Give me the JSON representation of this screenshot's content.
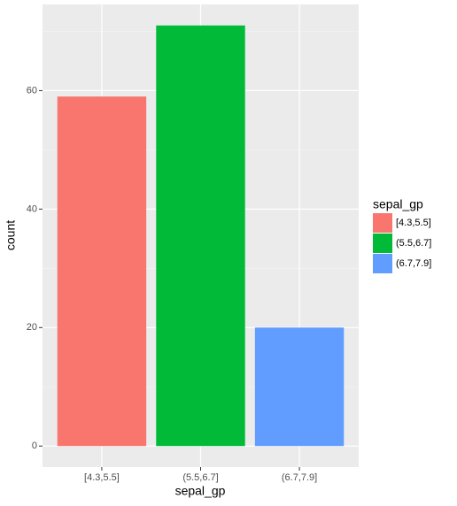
{
  "chart_data": {
    "type": "bar",
    "x_label": "sepal_gp",
    "y_label": "count",
    "categories": [
      "[4.3,5.5]",
      "(5.5,6.7]",
      "(6.7,7.9]"
    ],
    "values": [
      59,
      71,
      20
    ],
    "colors": [
      "#f8766d",
      "#00ba38",
      "#619cff"
    ],
    "legend": {
      "title": "sepal_gp",
      "position": "right"
    },
    "ylim": [
      -3.55,
      74.55
    ],
    "yticks": [
      0,
      20,
      40,
      60
    ],
    "yminorticks": [
      10,
      30,
      50,
      70
    ],
    "grid": true
  }
}
